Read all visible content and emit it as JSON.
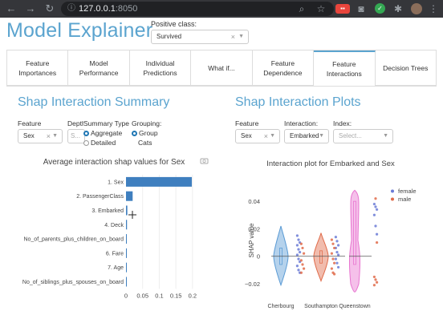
{
  "browser": {
    "url_host": "127.0.0.1",
    "url_port": ":8050"
  },
  "header": {
    "title": "Model Explainer",
    "positive_class_label": "Positive class:",
    "positive_class_value": "Survived"
  },
  "tabs": [
    {
      "label": "Feature Importances"
    },
    {
      "label": "Model Performance"
    },
    {
      "label": "Individual Predictions"
    },
    {
      "label": "What if..."
    },
    {
      "label": "Feature Dependence"
    },
    {
      "label": "Feature Interactions"
    },
    {
      "label": "Decision Trees"
    }
  ],
  "summary": {
    "title": "Shap Interaction Summary",
    "feature_label": "Feature",
    "feature_value": "Sex",
    "depth_label": "Depth:",
    "depth_placeholder": "S...",
    "summary_type_label": "Summary Type",
    "summary_type_options": [
      "Aggregate",
      "Detailed"
    ],
    "grouping_label": "Grouping:",
    "grouping_options": [
      "Group",
      "Cats"
    ],
    "chart_title": "Average interaction shap values for Sex"
  },
  "plots": {
    "title": "Shap Interaction Plots",
    "feature_label": "Feature",
    "feature_value": "Sex",
    "interaction_label": "Interaction:",
    "interaction_value": "Embarked",
    "index_label": "Index:",
    "index_placeholder": "Select...",
    "chart_title": "Interaction plot for Embarked and Sex"
  },
  "chart_data": [
    {
      "type": "bar",
      "orientation": "horizontal",
      "title": "Average interaction shap values for Sex",
      "categories": [
        "1. Sex",
        "2. PassengerClass",
        "3. Embarked",
        "4. Deck",
        "5. No_of_parents_plus_children_on_board",
        "6. Fare",
        "7. Age",
        "8. No_of_siblings_plus_spouses_on_board"
      ],
      "category_labels": [
        "1. Sex",
        "2. PassengerClass",
        "3. Embarked",
        "4. Deck",
        "No_of_parents_plus_children_on_board",
        "6. Fare",
        "7. Age",
        "No_of_siblings_plus_spouses_on_board"
      ],
      "values": [
        0.198,
        0.02,
        0.004,
        0.003,
        0.002,
        0.002,
        0.001,
        0.001
      ],
      "xlim": [
        0,
        0.21
      ],
      "xticks": [
        0,
        0.05,
        0.1,
        0.15,
        0.2
      ],
      "xtick_labels": [
        "0",
        "0.05",
        "0.1",
        "0.15",
        "0.2"
      ],
      "bar_color": "#3f7fbf"
    },
    {
      "type": "violin-scatter",
      "title": "Interaction plot for Embarked and Sex",
      "categories": [
        "Cherbourg",
        "Southampton",
        "Queenstown"
      ],
      "ylabel": "SHAP value",
      "ylim": [
        -0.027,
        0.05
      ],
      "yticks": [
        0.04,
        0.02,
        0,
        -0.02
      ],
      "ytick_labels": [
        "0.04",
        "0.02",
        "0",
        "−0.02"
      ],
      "legend": [
        {
          "name": "female",
          "color": "#6b7bd6"
        },
        {
          "name": "male",
          "color": "#e06b4a"
        }
      ],
      "violins": [
        {
          "category": "Cherbourg",
          "color": "#5b9bd5",
          "min": -0.021,
          "q1": -0.006,
          "median": 0,
          "q3": 0.006,
          "max": 0.022
        },
        {
          "category": "Southampton",
          "color": "#e06b4a",
          "min": -0.018,
          "q1": -0.005,
          "median": 0,
          "q3": 0.004,
          "max": 0.017
        },
        {
          "category": "Queenstown",
          "color": "#e874d0",
          "min": -0.026,
          "q1": -0.006,
          "median": 0,
          "q3": 0.04,
          "max": 0.048
        }
      ],
      "points": {
        "Cherbourg_female": [
          0.015,
          0.012,
          0.01,
          0.008,
          0.005,
          0.003,
          0.001,
          -0.002,
          -0.004,
          -0.007,
          -0.01,
          -0.012
        ],
        "Cherbourg_male": [
          0.009,
          0.006,
          0.002,
          -0.003,
          -0.006,
          -0.009,
          -0.012
        ],
        "Southampton_female": [
          0.014,
          0.011,
          0.008,
          0.006,
          0.003,
          0.001,
          -0.002,
          -0.005,
          -0.008
        ],
        "Southampton_male": [
          0.012,
          0.009,
          0.006,
          0.002,
          -0.002,
          -0.005,
          -0.009,
          -0.012,
          -0.013
        ],
        "Queenstown_female": [
          0.038,
          0.036,
          0.034,
          0.03,
          0.022,
          0.016
        ],
        "Queenstown_male": [
          -0.015,
          -0.017,
          -0.019,
          -0.021,
          0.042,
          0.01
        ]
      },
      "reference_line": 0
    }
  ]
}
